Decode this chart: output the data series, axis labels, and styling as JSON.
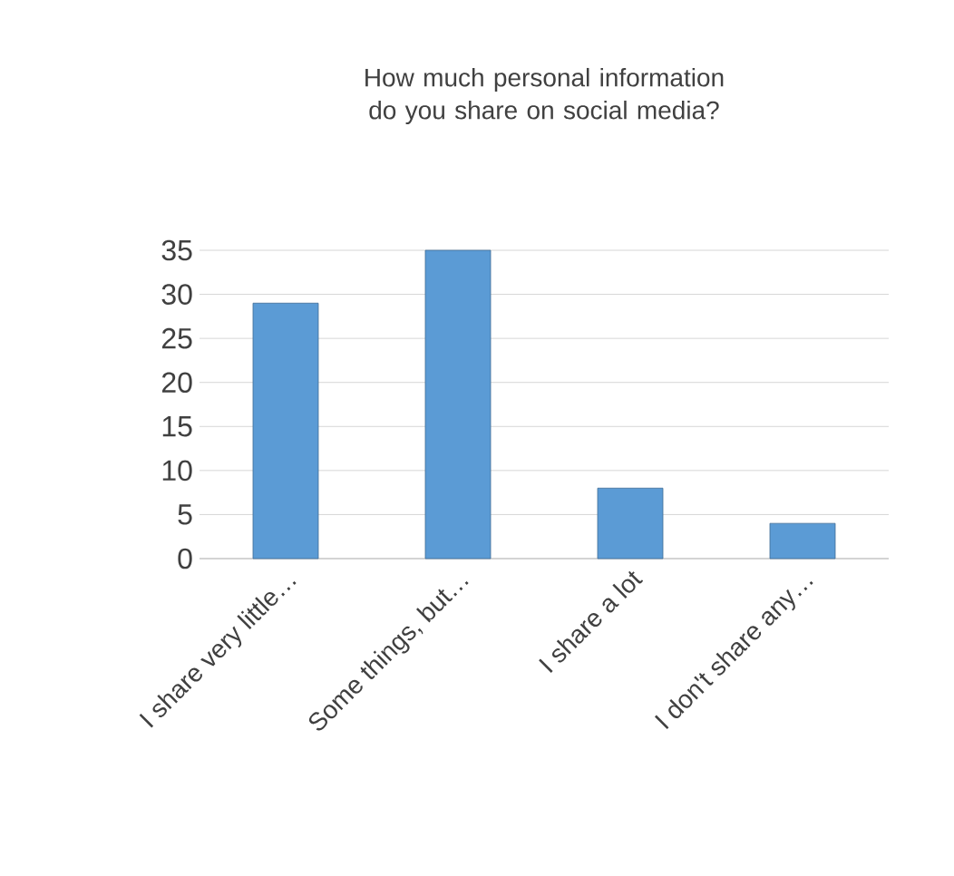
{
  "chart_data": {
    "type": "bar",
    "title": "How much personal information do you share on social media?",
    "categories": [
      "I share very little…",
      "Some things, but…",
      "I share a lot",
      "I don't share any…"
    ],
    "values": [
      29,
      35,
      8,
      4
    ],
    "color": "#5b9bd5",
    "ylim": [
      0,
      35
    ],
    "yticks": [
      0,
      5,
      10,
      15,
      20,
      25,
      30,
      35
    ],
    "grid": "y"
  }
}
